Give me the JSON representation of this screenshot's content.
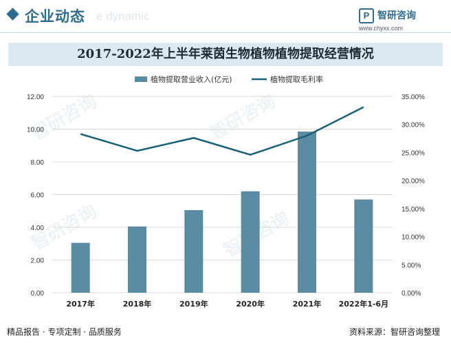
{
  "header": {
    "section_title": "企业动态",
    "ghost_text": "e dynamic",
    "brand_name": "智研咨询",
    "brand_url": "www.chyxx.com"
  },
  "watermark": "智研咨询",
  "footer": {
    "left": "精品报告 · 专项定制 · 品质服务",
    "right": "资料来源：智研咨询整理"
  },
  "chart_data": {
    "type": "bar",
    "title": "2017-2022年上半年莱茵生物植物植物提取经营情况",
    "categories": [
      "2017年",
      "2018年",
      "2019年",
      "2020年",
      "2021年",
      "2022年1-6月"
    ],
    "series": [
      {
        "name": "植物提取营业收入(亿元)",
        "type": "bar",
        "axis": "left",
        "color": "#5b8ba3",
        "values": [
          3.05,
          4.05,
          5.05,
          6.2,
          9.85,
          5.7
        ]
      },
      {
        "name": "植物提取毛利率",
        "type": "line",
        "axis": "right",
        "color": "#16607a",
        "values": [
          28.3,
          25.3,
          27.6,
          24.6,
          28.0,
          33.1
        ]
      }
    ],
    "y_left": {
      "min": 0,
      "max": 12,
      "step": 2,
      "ticks": [
        "0.00",
        "2.00",
        "4.00",
        "6.00",
        "8.00",
        "10.00",
        "12.00"
      ]
    },
    "y_right": {
      "min": 0,
      "max": 35,
      "step": 5,
      "ticks": [
        "0.00%",
        "5.00%",
        "10.00%",
        "15.00%",
        "20.00%",
        "25.00%",
        "30.00%",
        "35.00%"
      ]
    },
    "grid": true,
    "legend_position": "top"
  }
}
